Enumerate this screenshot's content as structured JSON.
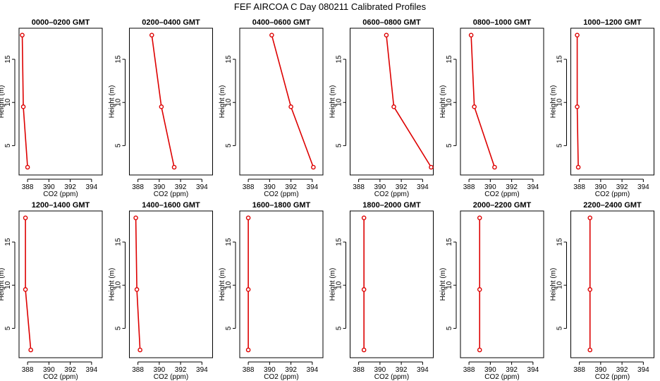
{
  "title": "FEF AIRCOA C  Day 080211  Calibrated Profiles",
  "colors": {
    "line": "#dd0000",
    "point": "#dd0000",
    "frame": "#000000"
  },
  "chart_data": {
    "type": "line",
    "xlabel": "CO2 (ppm)",
    "ylabel": "Height (m)",
    "xlim": [
      387.2,
      395.0
    ],
    "ylim": [
      1.6,
      18.6
    ],
    "x_ticks": [
      388,
      390,
      392,
      394
    ],
    "y_ticks": [
      5,
      10,
      15
    ],
    "grid": false,
    "panels": [
      {
        "title": "0000–0200 GMT",
        "heights": [
          2.5,
          9.5,
          17.8
        ],
        "values": [
          388.0,
          387.6,
          387.5
        ]
      },
      {
        "title": "0200–0400 GMT",
        "heights": [
          2.5,
          9.5,
          17.8
        ],
        "values": [
          391.4,
          390.2,
          389.3
        ]
      },
      {
        "title": "0400–0600 GMT",
        "heights": [
          2.5,
          9.5,
          17.8
        ],
        "values": [
          394.1,
          392.0,
          390.2
        ]
      },
      {
        "title": "0600–0800 GMT",
        "heights": [
          2.5,
          9.5,
          17.8
        ],
        "values": [
          394.8,
          391.3,
          390.6
        ]
      },
      {
        "title": "0800–1000 GMT",
        "heights": [
          2.5,
          9.5,
          17.8
        ],
        "values": [
          390.4,
          388.5,
          388.2
        ]
      },
      {
        "title": "1000–1200 GMT",
        "heights": [
          2.5,
          9.5,
          17.8
        ],
        "values": [
          387.9,
          387.8,
          387.8
        ]
      },
      {
        "title": "1200–1400 GMT",
        "heights": [
          2.5,
          9.5,
          17.8
        ],
        "values": [
          388.3,
          387.8,
          387.8
        ]
      },
      {
        "title": "1400–1600 GMT",
        "heights": [
          2.5,
          9.5,
          17.8
        ],
        "values": [
          388.2,
          387.9,
          387.8
        ]
      },
      {
        "title": "1600–1800 GMT",
        "heights": [
          2.5,
          9.5,
          17.8
        ],
        "values": [
          388.0,
          388.0,
          388.0
        ]
      },
      {
        "title": "1800–2000 GMT",
        "heights": [
          2.5,
          9.5,
          17.8
        ],
        "values": [
          388.5,
          388.5,
          388.5
        ]
      },
      {
        "title": "2000–2200 GMT",
        "heights": [
          2.5,
          9.5,
          17.8
        ],
        "values": [
          389.0,
          389.0,
          389.0
        ]
      },
      {
        "title": "2200–2400 GMT",
        "heights": [
          2.5,
          9.5,
          17.8
        ],
        "values": [
          389.0,
          389.0,
          389.0
        ]
      }
    ]
  }
}
